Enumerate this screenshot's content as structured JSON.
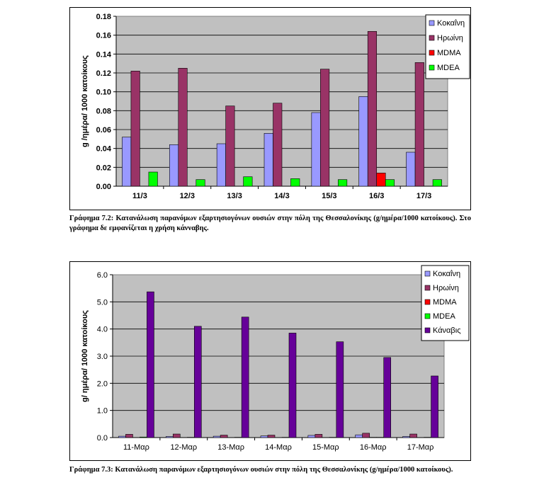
{
  "colors": {
    "cocaine": "#9999ff",
    "heroin": "#993366",
    "mdma": "#ff0000",
    "mdea": "#00ff00",
    "cannabis": "#660099",
    "plot_bg": "#c0c0c0"
  },
  "chart_data": [
    {
      "type": "bar",
      "title": "",
      "xlabel": "",
      "ylabel": "g /ημέρα/ 1000 κατοίκους",
      "ylim": [
        0,
        0.18
      ],
      "yticks": [
        "0.00",
        "0.02",
        "0.04",
        "0.06",
        "0.08",
        "0.10",
        "0.12",
        "0.14",
        "0.16",
        "0.18"
      ],
      "categories": [
        "11/3",
        "12/3",
        "13/3",
        "14/3",
        "15/3",
        "16/3",
        "17/3"
      ],
      "grid": true,
      "legend": "top-right",
      "series": [
        {
          "name": "Κοκαΐνη",
          "color_key": "cocaine",
          "values": [
            0.052,
            0.044,
            0.045,
            0.056,
            0.078,
            0.095,
            0.036
          ]
        },
        {
          "name": "Ηρωίνη",
          "color_key": "heroin",
          "values": [
            0.122,
            0.125,
            0.085,
            0.088,
            0.124,
            0.164,
            0.131
          ]
        },
        {
          "name": "MDMA",
          "color_key": "mdma",
          "values": [
            0,
            0,
            0,
            0,
            0,
            0.014,
            0
          ]
        },
        {
          "name": "MDEA",
          "color_key": "mdea",
          "values": [
            0.015,
            0.007,
            0.01,
            0.008,
            0.007,
            0.007,
            0.007
          ]
        }
      ]
    },
    {
      "type": "bar",
      "title": "",
      "xlabel": "",
      "ylabel": "g/ ημέρα/ 1000 κατοίκους",
      "ylim": [
        0,
        6.0
      ],
      "yticks": [
        "0.0",
        "1.0",
        "2.0",
        "3.0",
        "4.0",
        "5.0",
        "6.0"
      ],
      "categories": [
        "11-Μαρ",
        "12-Μαρ",
        "13-Μαρ",
        "14-Μαρ",
        "15-Μαρ",
        "16-Μαρ",
        "17-Μαρ"
      ],
      "grid": true,
      "legend": "top-right",
      "series": [
        {
          "name": "Κοκαΐνη",
          "color_key": "cocaine",
          "values": [
            0.05,
            0.04,
            0.05,
            0.06,
            0.08,
            0.1,
            0.04
          ]
        },
        {
          "name": "Ηρωίνη",
          "color_key": "heroin",
          "values": [
            0.12,
            0.13,
            0.09,
            0.09,
            0.12,
            0.16,
            0.13
          ]
        },
        {
          "name": "MDMA",
          "color_key": "mdma",
          "values": [
            0,
            0,
            0,
            0,
            0,
            0.01,
            0
          ]
        },
        {
          "name": "MDEA",
          "color_key": "mdea",
          "values": [
            0.02,
            0.01,
            0.01,
            0.01,
            0.01,
            0.01,
            0.01
          ]
        },
        {
          "name": "Κάναβις",
          "color_key": "cannabis",
          "values": [
            5.37,
            4.1,
            4.44,
            3.85,
            3.53,
            2.95,
            2.27
          ]
        }
      ]
    }
  ],
  "captions": [
    "Γράφημα 7.2: Κατανάλωση παρανόμων εξαρτησιογόνων ουσιών στην πόλη της Θεσσαλονίκης (g/ημέρα/1000 κατοίκους). Στο γράφημα δε εμφανίζεται η χρήση κάνναβης.",
    "Γράφημα 7.3: Κατανάλωση παρανόμων εξαρτησιογόνων ουσιών στην πόλη της Θεσσαλονίκης (g/ημέρα/1000 κατοίκους)."
  ]
}
